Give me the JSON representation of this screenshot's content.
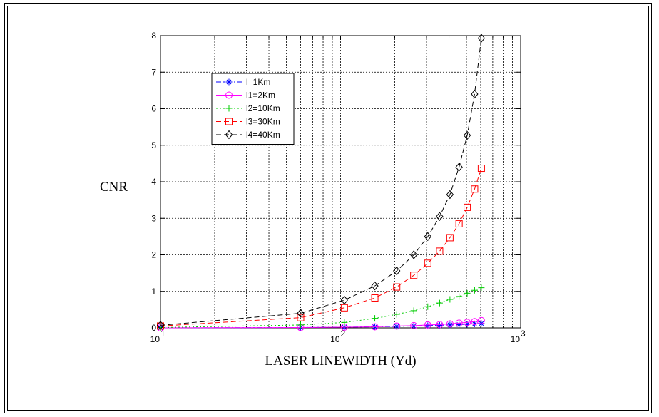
{
  "chart_data": {
    "type": "line",
    "title": "",
    "xlabel": "LASER LINEWIDTH (Yd)",
    "ylabel": "CNR",
    "x_scale": "log",
    "xlim": [
      10,
      1000
    ],
    "ylim": [
      0,
      8
    ],
    "grid": true,
    "legend_position": "top-left",
    "x_ticks": [
      {
        "base": "10",
        "exp": "1"
      },
      {
        "base": "10",
        "exp": "2"
      },
      {
        "base": "10",
        "exp": "3"
      }
    ],
    "y_ticks": [
      "0",
      "1",
      "2",
      "3",
      "4",
      "5",
      "6",
      "7",
      "8"
    ],
    "series": [
      {
        "name": "l=1Km",
        "color": "#0000ff",
        "dash": "dashdot",
        "marker": "star",
        "x": [
          10,
          60,
          105,
          155,
          205,
          255,
          305,
          355,
          405,
          455,
          505,
          555,
          605
        ],
        "y": [
          0.0,
          0.01,
          0.02,
          0.03,
          0.04,
          0.05,
          0.06,
          0.07,
          0.08,
          0.09,
          0.1,
          0.11,
          0.12
        ]
      },
      {
        "name": "l1=2Km",
        "color": "#ff00ff",
        "dash": "solid",
        "marker": "circle",
        "x": [
          10,
          60,
          105,
          155,
          205,
          255,
          305,
          355,
          405,
          455,
          505,
          555,
          605
        ],
        "y": [
          0.0,
          0.01,
          0.02,
          0.03,
          0.05,
          0.06,
          0.08,
          0.09,
          0.11,
          0.13,
          0.15,
          0.17,
          0.2
        ]
      },
      {
        "name": "l2=10Km",
        "color": "#00cc00",
        "dash": "dotted",
        "marker": "plus",
        "x": [
          10,
          60,
          105,
          155,
          205,
          255,
          305,
          355,
          405,
          455,
          505,
          555,
          605
        ],
        "y": [
          0.01,
          0.08,
          0.15,
          0.26,
          0.37,
          0.47,
          0.58,
          0.68,
          0.78,
          0.86,
          0.95,
          1.03,
          1.1
        ]
      },
      {
        "name": "l3=30Km",
        "color": "#ff0000",
        "dash": "dashed",
        "marker": "square",
        "x": [
          10,
          60,
          105,
          155,
          205,
          255,
          305,
          355,
          405,
          455,
          505,
          555,
          605
        ],
        "y": [
          0.05,
          0.28,
          0.55,
          0.82,
          1.12,
          1.44,
          1.77,
          2.1,
          2.47,
          2.85,
          3.3,
          3.8,
          4.37
        ]
      },
      {
        "name": "l4=40Km",
        "color": "#000000",
        "dash": "dashed",
        "marker": "diamond",
        "x": [
          10,
          60,
          105,
          155,
          205,
          255,
          305,
          355,
          405,
          455,
          505,
          555,
          605
        ],
        "y": [
          0.07,
          0.4,
          0.76,
          1.15,
          1.56,
          2.0,
          2.5,
          3.05,
          3.65,
          4.4,
          5.27,
          6.4,
          7.93
        ]
      }
    ]
  }
}
